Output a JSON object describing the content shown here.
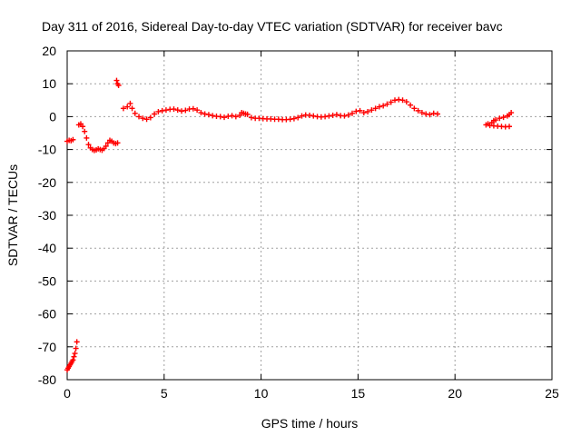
{
  "chart_data": {
    "type": "scatter",
    "title": "Day 311 of 2016, Sidereal Day-to-day VTEC variation (SDTVAR) for receiver bavc",
    "xlabel": "GPS time / hours",
    "ylabel": "SDTVAR / TECUs",
    "xlim": [
      0,
      25
    ],
    "ylim": [
      -80,
      20
    ],
    "xticks": [
      0,
      5,
      10,
      15,
      20,
      25
    ],
    "yticks": [
      -80,
      -70,
      -60,
      -50,
      -40,
      -30,
      -20,
      -10,
      0,
      10,
      20
    ],
    "grid": true,
    "marker": "+",
    "series_color": "#ff0000",
    "series": [
      {
        "name": "SDTVAR",
        "points": [
          [
            0.0,
            -77
          ],
          [
            0.05,
            -76.5
          ],
          [
            0.1,
            -76
          ],
          [
            0.15,
            -75.5
          ],
          [
            0.2,
            -75
          ],
          [
            0.25,
            -74.5
          ],
          [
            0.3,
            -74
          ],
          [
            0.35,
            -73
          ],
          [
            0.4,
            -72
          ],
          [
            0.45,
            -70.5
          ],
          [
            0.5,
            -68.5
          ],
          [
            0.0,
            -7.5
          ],
          [
            0.1,
            -7.2
          ],
          [
            0.2,
            -7.3
          ],
          [
            0.3,
            -7.0
          ],
          [
            0.6,
            -2.5
          ],
          [
            0.7,
            -2.2
          ],
          [
            0.8,
            -3
          ],
          [
            0.9,
            -4.5
          ],
          [
            1.0,
            -6.5
          ],
          [
            1.1,
            -8.5
          ],
          [
            1.2,
            -9.5
          ],
          [
            1.3,
            -10
          ],
          [
            1.4,
            -10.3
          ],
          [
            1.5,
            -10.1
          ],
          [
            1.6,
            -9.8
          ],
          [
            1.7,
            -10
          ],
          [
            1.8,
            -10.2
          ],
          [
            1.9,
            -9.7
          ],
          [
            2.0,
            -9
          ],
          [
            2.1,
            -8
          ],
          [
            2.2,
            -7.2
          ],
          [
            2.3,
            -7.5
          ],
          [
            2.4,
            -8
          ],
          [
            2.5,
            -8.2
          ],
          [
            2.6,
            -8
          ],
          [
            2.55,
            11
          ],
          [
            2.6,
            10
          ],
          [
            2.65,
            9.5
          ],
          [
            2.9,
            2.5
          ],
          [
            3.1,
            3
          ],
          [
            3.25,
            4
          ],
          [
            3.35,
            2.5
          ],
          [
            3.5,
            1
          ],
          [
            3.7,
            0
          ],
          [
            3.9,
            -0.5
          ],
          [
            4.1,
            -0.8
          ],
          [
            4.3,
            -0.3
          ],
          [
            4.5,
            0.8
          ],
          [
            4.7,
            1.5
          ],
          [
            4.9,
            1.8
          ],
          [
            5.1,
            2.0
          ],
          [
            5.3,
            2.2
          ],
          [
            5.5,
            2.3
          ],
          [
            5.7,
            2.0
          ],
          [
            5.9,
            1.7
          ],
          [
            6.1,
            1.9
          ],
          [
            6.3,
            2.3
          ],
          [
            6.5,
            2.4
          ],
          [
            6.7,
            2.0
          ],
          [
            6.9,
            1.2
          ],
          [
            7.1,
            0.8
          ],
          [
            7.3,
            0.6
          ],
          [
            7.5,
            0.3
          ],
          [
            7.7,
            0.1
          ],
          [
            7.9,
            0
          ],
          [
            8.1,
            -0.2
          ],
          [
            8.3,
            0.1
          ],
          [
            8.5,
            0.3
          ],
          [
            8.7,
            0
          ],
          [
            8.9,
            0.4
          ],
          [
            9.0,
            1.2
          ],
          [
            9.1,
            1.0
          ],
          [
            9.2,
            0.8
          ],
          [
            9.3,
            0.7
          ],
          [
            9.5,
            -0.3
          ],
          [
            9.7,
            -0.5
          ],
          [
            9.9,
            -0.5
          ],
          [
            10.1,
            -0.6
          ],
          [
            10.3,
            -0.7
          ],
          [
            10.5,
            -0.7
          ],
          [
            10.7,
            -0.8
          ],
          [
            10.9,
            -0.8
          ],
          [
            11.1,
            -0.9
          ],
          [
            11.3,
            -0.9
          ],
          [
            11.5,
            -0.8
          ],
          [
            11.7,
            -0.6
          ],
          [
            11.9,
            -0.3
          ],
          [
            12.1,
            0.2
          ],
          [
            12.3,
            0.5
          ],
          [
            12.5,
            0.4
          ],
          [
            12.7,
            0.2
          ],
          [
            12.9,
            0
          ],
          [
            13.1,
            -0.1
          ],
          [
            13.3,
            0
          ],
          [
            13.5,
            0.2
          ],
          [
            13.7,
            0.4
          ],
          [
            13.9,
            0.6
          ],
          [
            14.1,
            0.3
          ],
          [
            14.3,
            0.2
          ],
          [
            14.5,
            0.5
          ],
          [
            14.7,
            1.0
          ],
          [
            14.9,
            1.6
          ],
          [
            15.1,
            1.8
          ],
          [
            15.3,
            1.2
          ],
          [
            15.5,
            1.5
          ],
          [
            15.7,
            2.0
          ],
          [
            15.9,
            2.5
          ],
          [
            16.1,
            3.0
          ],
          [
            16.3,
            3.3
          ],
          [
            16.5,
            3.8
          ],
          [
            16.7,
            4.4
          ],
          [
            16.9,
            5.0
          ],
          [
            17.1,
            5.2
          ],
          [
            17.3,
            5.0
          ],
          [
            17.5,
            4.5
          ],
          [
            17.7,
            3.5
          ],
          [
            17.9,
            2.5
          ],
          [
            18.1,
            1.8
          ],
          [
            18.3,
            1.2
          ],
          [
            18.5,
            0.8
          ],
          [
            18.7,
            0.6
          ],
          [
            18.9,
            1.0
          ],
          [
            19.1,
            0.8
          ],
          [
            21.6,
            -2.5
          ],
          [
            21.8,
            -2.7
          ],
          [
            22.0,
            -2.8
          ],
          [
            22.2,
            -2.9
          ],
          [
            22.4,
            -3.0
          ],
          [
            22.6,
            -3.1
          ],
          [
            22.8,
            -3.0
          ],
          [
            21.7,
            -2.2
          ],
          [
            21.9,
            -1.8
          ],
          [
            22.0,
            -1.2
          ],
          [
            22.1,
            -1.0
          ],
          [
            22.3,
            -0.5
          ],
          [
            22.5,
            -0.2
          ],
          [
            22.7,
            0.2
          ],
          [
            22.8,
            0.6
          ],
          [
            22.9,
            1.2
          ]
        ]
      }
    ]
  }
}
